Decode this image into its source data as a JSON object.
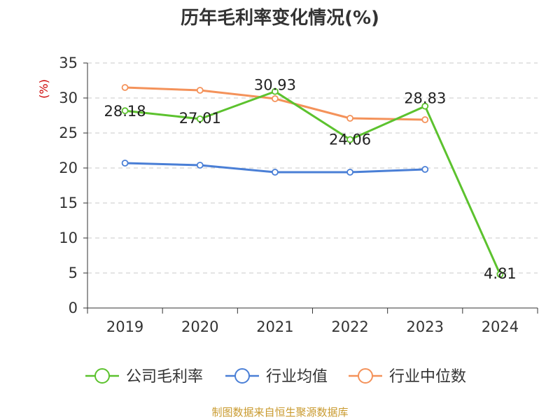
{
  "chart_data": {
    "type": "line",
    "title": "历年毛利率变化情况(%)",
    "ylabel": "(%)",
    "categories": [
      "2019",
      "2020",
      "2021",
      "2022",
      "2023",
      "2024"
    ],
    "ylim": [
      0,
      35
    ],
    "yticks": [
      0,
      5,
      10,
      15,
      20,
      25,
      30,
      35
    ],
    "grid": true,
    "legend_position": "bottom",
    "series": [
      {
        "name": "公司毛利率",
        "color": "#5cc22e",
        "values": [
          28.18,
          27.01,
          30.93,
          24.06,
          28.83,
          4.81
        ],
        "data_labels": [
          "28.18",
          "27.01",
          "30.93",
          "24.06",
          "28.83",
          "4.81"
        ]
      },
      {
        "name": "行业均值",
        "color": "#4a7fd6",
        "values": [
          20.7,
          20.4,
          19.4,
          19.4,
          19.8,
          null
        ]
      },
      {
        "name": "行业中位数",
        "color": "#f4925a",
        "values": [
          31.5,
          31.1,
          29.9,
          27.1,
          26.9,
          null
        ]
      }
    ]
  },
  "source": "制图数据来自恒生聚源数据库"
}
